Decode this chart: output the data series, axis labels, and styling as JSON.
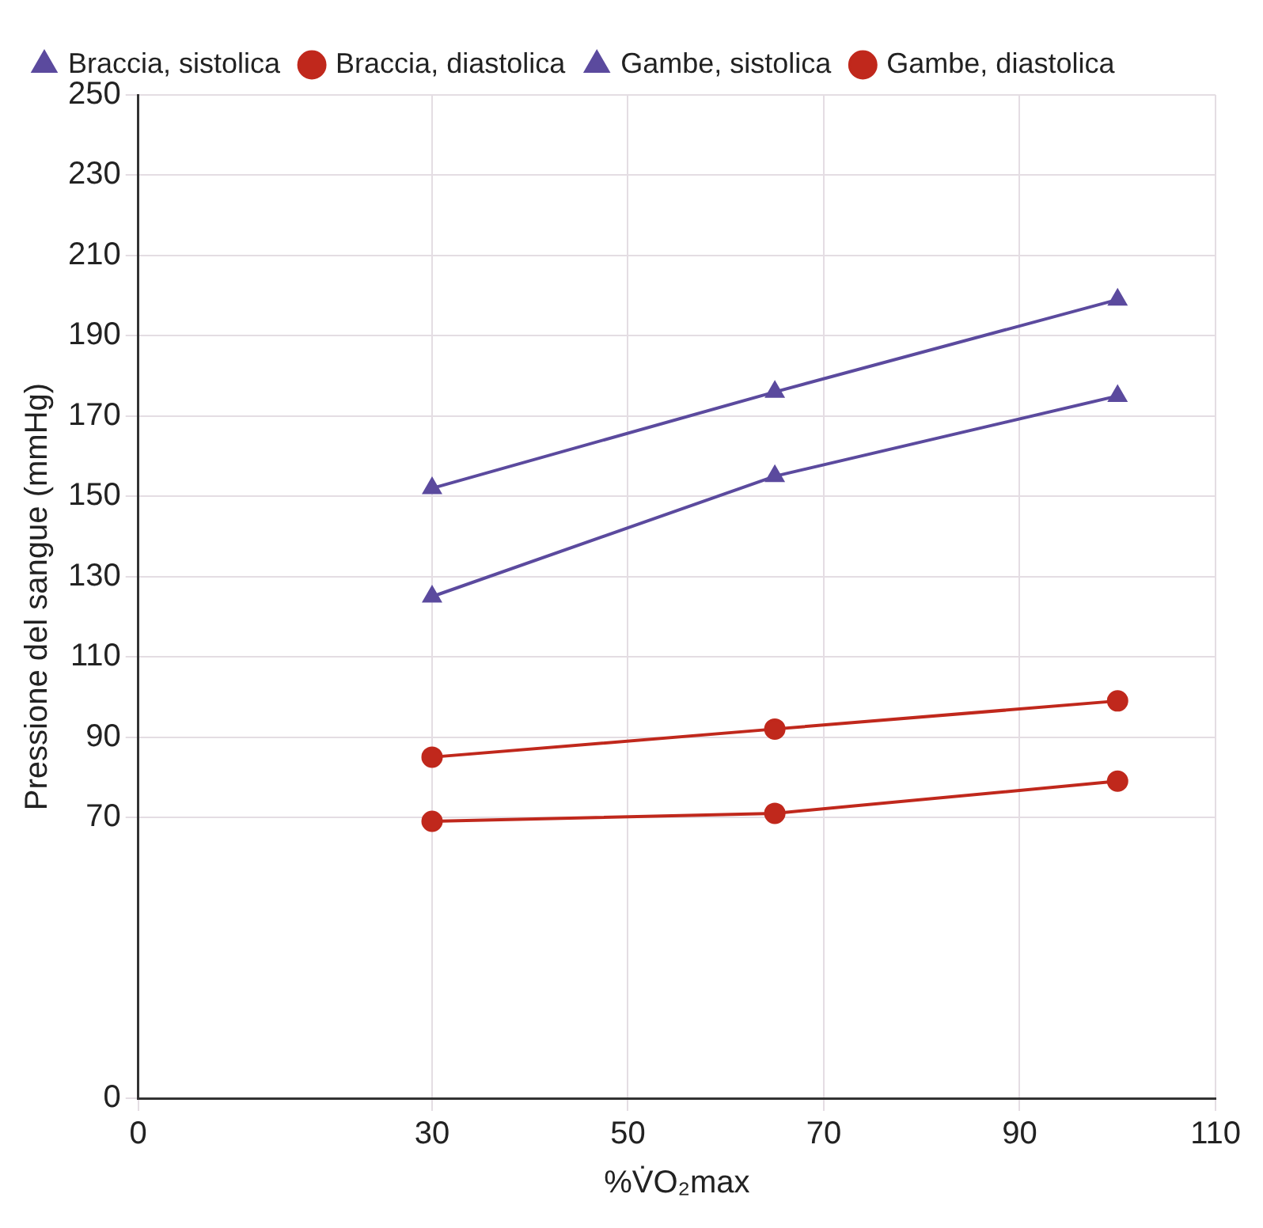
{
  "chart_data": {
    "type": "line",
    "xlabel": "%V̇O₂max",
    "ylabel": "Pressione del sangue (mmHg)",
    "x": [
      30,
      65,
      100
    ],
    "series": [
      {
        "name": "Braccia, sistolica",
        "color": "#5b4a9e",
        "values": [
          152,
          176,
          199
        ],
        "marker": "triangle"
      },
      {
        "name": "Braccia, diastolica",
        "color": "#c0281c",
        "values": [
          85,
          92,
          99
        ],
        "marker": "circle"
      },
      {
        "name": "Gambe, sistolica",
        "color": "#5b4a9e",
        "values": [
          125,
          155,
          175
        ],
        "marker": "triangle"
      },
      {
        "name": "Gambe, diastolica",
        "color": "#c0281c",
        "values": [
          69,
          71,
          79
        ],
        "marker": "circle"
      }
    ],
    "xlim": [
      0,
      110
    ],
    "xticks": [
      0,
      30,
      50,
      70,
      90,
      110
    ],
    "ylim": [
      0,
      250
    ],
    "yticks": [
      0,
      70,
      90,
      110,
      130,
      150,
      170,
      190,
      210,
      230,
      250
    ],
    "grid": true,
    "legend": "top left",
    "line_style": "solid"
  }
}
